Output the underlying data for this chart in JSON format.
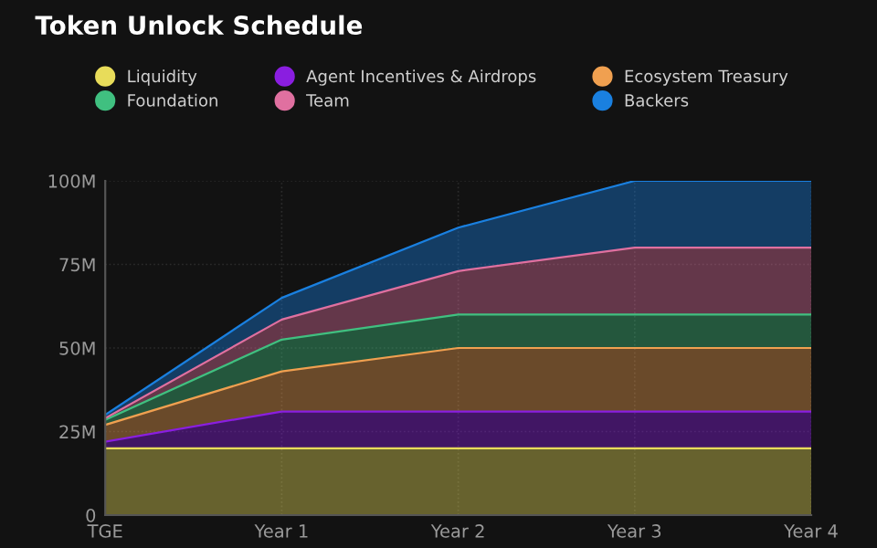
{
  "chart_data": {
    "type": "area",
    "title": "Token Unlock Schedule",
    "stacked": true,
    "categories": [
      "TGE",
      "Year 1",
      "Year 2",
      "Year 3",
      "Year 4"
    ],
    "ylim": [
      0,
      100
    ],
    "yticks": [
      0,
      {
        "value": 25,
        "label": "25M"
      },
      {
        "value": 50,
        "label": "50M"
      },
      {
        "value": 75,
        "label": "75M"
      },
      {
        "value": 100,
        "label": "100M"
      }
    ],
    "grid": true,
    "legend": "top",
    "series": [
      {
        "name": "Liquidity",
        "color": "#e8dc5a",
        "values": [
          20,
          20,
          20,
          20,
          20
        ]
      },
      {
        "name": "Agent Incentives & Airdrops",
        "color": "#8a1ee0",
        "values": [
          2,
          11,
          11,
          11,
          11
        ]
      },
      {
        "name": "Ecosystem Treasury",
        "color": "#f0a050",
        "values": [
          5,
          12,
          19,
          19,
          19
        ]
      },
      {
        "name": "Foundation",
        "color": "#40c080",
        "values": [
          1.5,
          9.5,
          10,
          10,
          10
        ]
      },
      {
        "name": "Team",
        "color": "#e070a0",
        "values": [
          0.5,
          6,
          13,
          20,
          20
        ]
      },
      {
        "name": "Backers",
        "color": "#1a80e0",
        "values": [
          1,
          6.5,
          13,
          20,
          20
        ]
      }
    ]
  }
}
